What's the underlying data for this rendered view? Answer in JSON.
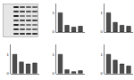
{
  "chart_data": [
    {
      "type": "bar",
      "categories": [
        null,
        null,
        null,
        null
      ],
      "values": [
        1,
        0.35,
        0.25,
        0.3
      ],
      "color": "#4d4d4d",
      "ylim": [
        0,
        1.5
      ],
      "yticks": [
        0,
        1
      ],
      "tick_labels": "y"
    },
    {
      "type": "bar",
      "categories": [
        null,
        null,
        null,
        null
      ],
      "values": [
        1,
        0.5,
        0.35,
        0.3
      ],
      "color": "#4d4d4d",
      "ylim": [
        0,
        1.5
      ],
      "yticks": [
        0,
        1
      ],
      "tick_labels": "y"
    },
    {
      "type": "bar",
      "categories": [
        null,
        null,
        null,
        null
      ],
      "values": [
        1,
        0.6,
        0.5,
        0.55
      ],
      "color": "#4d4d4d",
      "ylim": [
        0,
        1.5
      ],
      "yticks": [
        0,
        1
      ],
      "tick_labels": "y"
    },
    {
      "type": "bar",
      "categories": [
        null,
        null,
        null,
        null
      ],
      "values": [
        1,
        0.2,
        0.1,
        0.15
      ],
      "color": "#4d4d4d",
      "ylim": [
        0,
        1.5
      ],
      "yticks": [
        0,
        1
      ],
      "tick_labels": "y"
    },
    {
      "type": "bar",
      "categories": [
        null,
        null,
        null,
        null
      ],
      "values": [
        1,
        0.7,
        0.5,
        0.4
      ],
      "color": "#4d4d4d",
      "ylim": [
        0,
        1.5
      ],
      "yticks": [
        0,
        1
      ],
      "tick_labels": "y"
    }
  ]
}
